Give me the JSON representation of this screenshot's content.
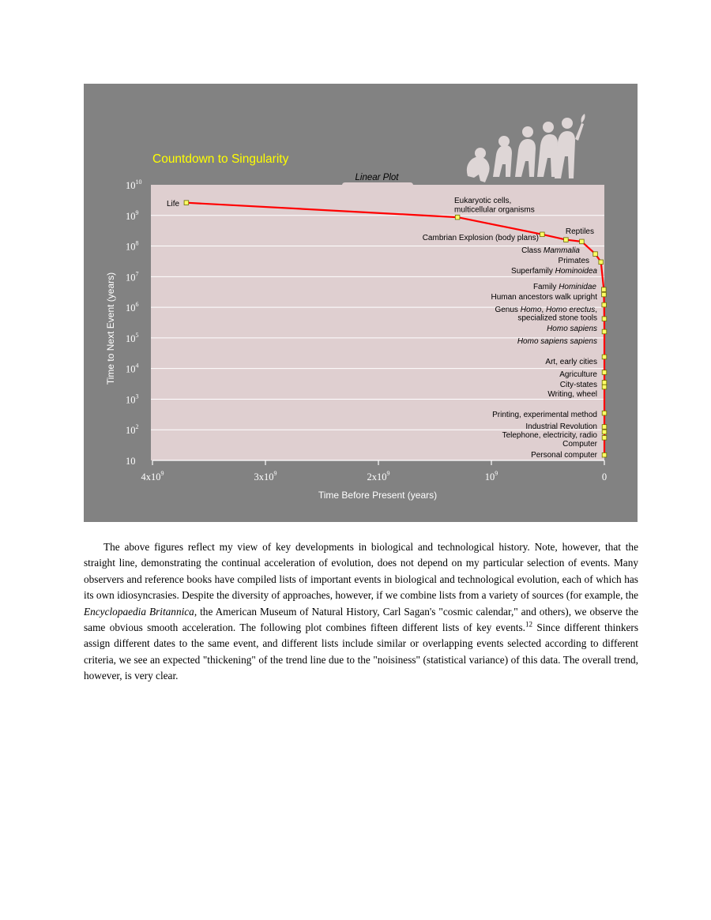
{
  "figure": {
    "title": "Countdown to Singularity",
    "plot_tab": "Linear Plot",
    "colors": {
      "background": "#828282",
      "plot_area": "#dfcfd0",
      "curve": "#ff0000",
      "marker_fill": "#ffff66",
      "title": "#ffff00",
      "text_light": "#ffffff",
      "text_dark": "#000000"
    },
    "icon": "evolution-of-man-silhouettes-icon"
  },
  "chart_data": {
    "type": "line",
    "title": "Countdown to Singularity",
    "subtitle": "Linear Plot",
    "xlabel": "Time Before Present (years)",
    "ylabel": "Time to Next Event (years)",
    "x_scale": "linear",
    "y_scale": "log",
    "xlim": [
      4000000000,
      0
    ],
    "ylim": [
      10,
      10000000000
    ],
    "x_ticks": [
      {
        "value": 4000000000,
        "base": "4x10",
        "exp": "9"
      },
      {
        "value": 3000000000,
        "base": "3x10",
        "exp": "9"
      },
      {
        "value": 2000000000,
        "base": "2x10",
        "exp": "9"
      },
      {
        "value": 1000000000,
        "base": "10",
        "exp": "9"
      },
      {
        "value": 0,
        "base": "0",
        "exp": ""
      }
    ],
    "y_ticks": [
      {
        "value": 10,
        "base": "10",
        "exp": ""
      },
      {
        "value": 100,
        "base": "10",
        "exp": "2"
      },
      {
        "value": 1000,
        "base": "10",
        "exp": "3"
      },
      {
        "value": 10000,
        "base": "10",
        "exp": "4"
      },
      {
        "value": 100000,
        "base": "10",
        "exp": "5"
      },
      {
        "value": 1000000,
        "base": "10",
        "exp": "6"
      },
      {
        "value": 10000000,
        "base": "10",
        "exp": "7"
      },
      {
        "value": 100000000,
        "base": "10",
        "exp": "8"
      },
      {
        "value": 1000000000,
        "base": "10",
        "exp": "9"
      },
      {
        "value": 10000000000,
        "base": "10",
        "exp": "10"
      }
    ],
    "grid": true,
    "points": [
      {
        "label": "Life",
        "x": 3700000000,
        "y": 2600000000
      },
      {
        "label": "Eukaryotic cells, multicellular organisms",
        "x": 1300000000,
        "y": 870000000
      },
      {
        "label": "Cambrian Explosion (body plans)",
        "x": 550000000,
        "y": 240000000
      },
      {
        "label": "Reptiles",
        "x": 340000000,
        "y": 160000000
      },
      {
        "label": "Class Mammalia",
        "x": 200000000,
        "y": 140000000
      },
      {
        "label": "Primates",
        "x": 80000000,
        "y": 55000000
      },
      {
        "label": "Superfamily Hominoidea",
        "x": 30000000,
        "y": 30000000
      },
      {
        "label": "Family Hominidae",
        "x": 5000000,
        "y": 3800000
      },
      {
        "label": "Human ancestors walk upright",
        "x": 4000000,
        "y": 2600000
      },
      {
        "label": "Genus Homo, Homo erectus, specialized stone tools",
        "x": 2000000,
        "y": 1200000
      },
      {
        "label": "Homo sapiens",
        "x": 400000,
        "y": 420000
      },
      {
        "label": "Homo sapiens sapiens",
        "x": 150000,
        "y": 160000
      },
      {
        "label": "Art, early cities",
        "x": 30000,
        "y": 24000
      },
      {
        "label": "Agriculture",
        "x": 12000,
        "y": 7500
      },
      {
        "label": "City-states",
        "x": 7000,
        "y": 3500
      },
      {
        "label": "Writing, wheel",
        "x": 5000,
        "y": 2500
      },
      {
        "label": "Printing, experimental method",
        "x": 600,
        "y": 350
      },
      {
        "label": "Industrial Revolution",
        "x": 250,
        "y": 125
      },
      {
        "label": "Telephone, electricity, radio",
        "x": 120,
        "y": 85
      },
      {
        "label": "Computer",
        "x": 60,
        "y": 55
      },
      {
        "label": "Personal computer",
        "x": 25,
        "y": 15
      }
    ]
  },
  "body": {
    "p1_a": "The above figures reflect my view of key developments in biological and technological history. Note, however, that the straight line, demonstrating the continual acceleration of evolution, does not depend on my particular selection of events. Many observers and reference books have compiled lists of important events in biological and technological evolution, each of which has its own idiosyncrasies. Despite the diversity of approaches, however, if we combine lists from a variety of sources (for example, the ",
    "p1_em": "Encyclopaedia Britannica",
    "p1_b": ", the American Museum of Natural History, Carl Sagan's \"cosmic calendar,\" and others), we observe the same obvious smooth acceleration. The following plot combines fifteen different lists of key events.",
    "p1_sup": "12",
    "p1_c": " Since different thinkers assign different dates to the same event, and different lists include similar or overlapping events selected according to different criteria, we see an expected \"thickening\" of the trend line due to the \"noisiness\" (statistical variance) of this data. The overall trend, however, is very clear."
  }
}
